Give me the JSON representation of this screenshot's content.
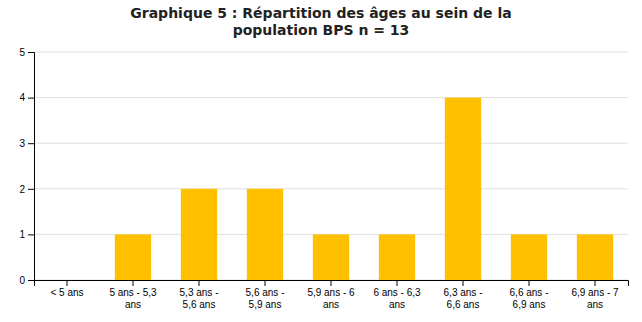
{
  "chart_data": {
    "type": "bar",
    "title": "Graphique 5 : Répartition des âges au sein de la\npopulation BPS n = 13",
    "categories": [
      "< 5 ans",
      "5 ans - 5,3\nans",
      "5,3 ans -\n5,6 ans",
      "5,6 ans -\n5,9 ans",
      "5,9 ans - 6\nans",
      "6 ans - 6,3\nans",
      "6,3 ans -\n6,6 ans",
      "6,6 ans -\n6,9 ans",
      "6,9 ans - 7\nans"
    ],
    "values": [
      0,
      1,
      2,
      2,
      1,
      1,
      4,
      1,
      1
    ],
    "color": "#FFC000",
    "ylim": [
      0,
      5
    ],
    "yticks": [
      0,
      1,
      2,
      3,
      4,
      5
    ],
    "grid": true
  }
}
